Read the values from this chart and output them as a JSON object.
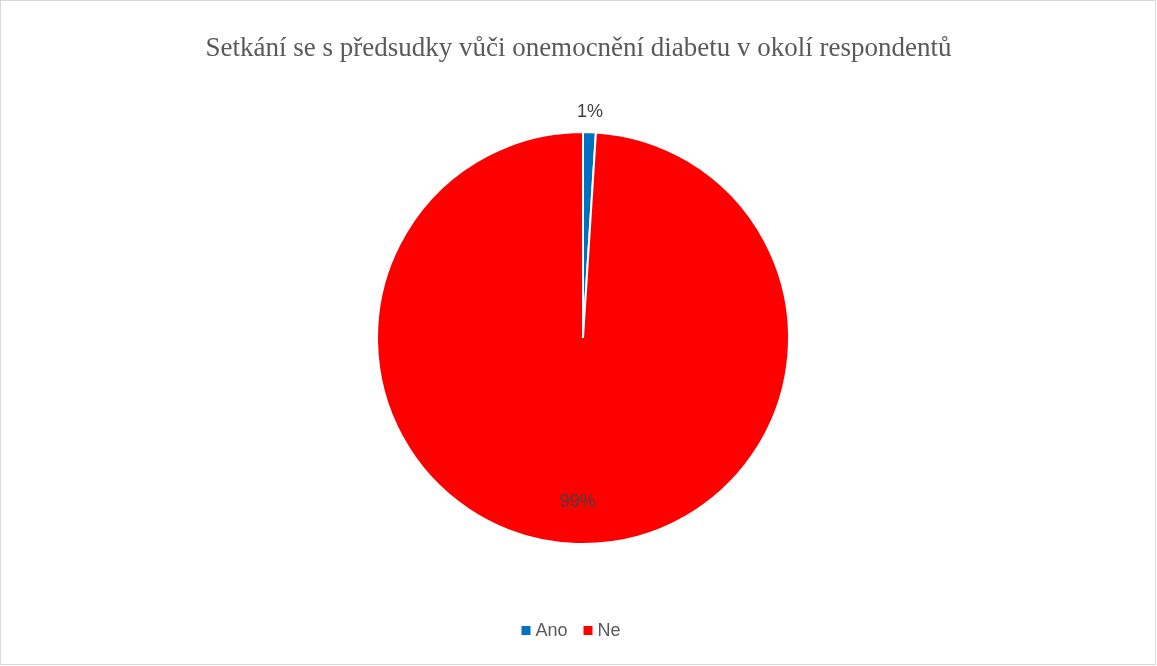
{
  "chart_data": {
    "type": "pie",
    "title": "Setkání se s předsudky vůči onemocnění diabetu v okolí respondentů",
    "categories": [
      "Ano",
      "Ne"
    ],
    "values": [
      1,
      99
    ],
    "colors": [
      "#0070c0",
      "#ff0000"
    ],
    "value_labels": [
      "1%",
      "99%"
    ],
    "legend": "bottom"
  }
}
